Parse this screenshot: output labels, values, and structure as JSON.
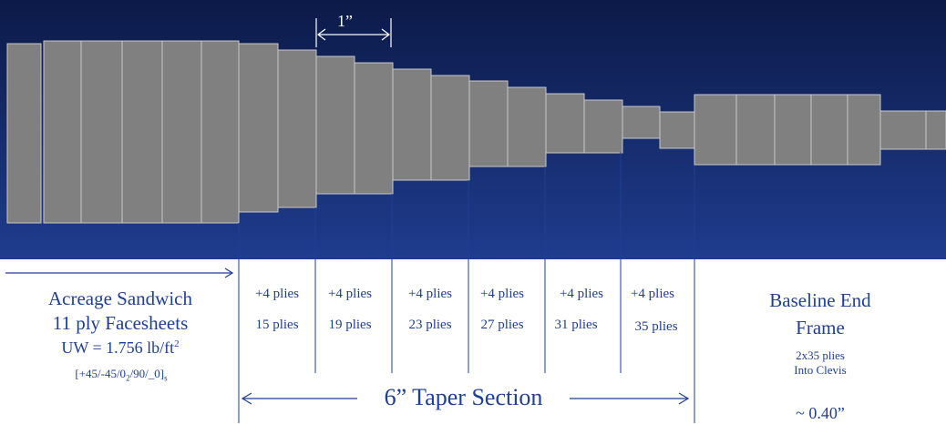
{
  "colors": {
    "panel_dark": "#0c1a48",
    "panel_light": "#1f3c8e",
    "ply_fill": "#808080",
    "ply_edge": "#c8c8c8",
    "annotation": "#1f3f95",
    "white": "#ffffff"
  },
  "dimension_top": {
    "label": "1”"
  },
  "acreage": {
    "title": "Acreage Sandwich",
    "facesheets": "11 ply Facesheets",
    "uw_prefix": "UW = 1.756 lb/ft",
    "uw_sup": "2",
    "layup": {
      "a": "[+45/-45/0",
      "sub1": "2",
      "b": "/90/_0]",
      "sub2": "s"
    }
  },
  "taper_steps": [
    {
      "add": "+4 plies",
      "total": "15 plies"
    },
    {
      "add": "+4 plies",
      "total": "19 plies"
    },
    {
      "add": "+4 plies",
      "total": "23 plies"
    },
    {
      "add": "+4 plies",
      "total": "27 plies"
    },
    {
      "add": "+4 plies",
      "total": "31 plies"
    },
    {
      "add": "+4 plies",
      "total": "35 plies"
    }
  ],
  "end_frame": {
    "title_line1": "Baseline End",
    "title_line2": "Frame",
    "plies": "2x35 plies",
    "into": "Into Clevis",
    "thickness": "~ 0.40”"
  },
  "taper_section": {
    "label": "6” Taper Section"
  }
}
